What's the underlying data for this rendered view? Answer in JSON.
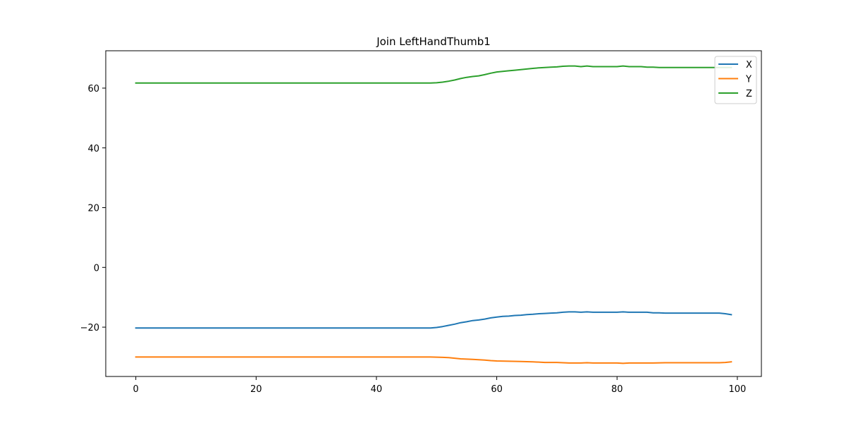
{
  "chart_data": {
    "type": "line",
    "title": "Join LeftHandThumb1",
    "xlabel": "",
    "ylabel": "",
    "xlim": [
      -5.0,
      104.0
    ],
    "ylim": [
      -36.5,
      72.5
    ],
    "xticks": [
      0,
      20,
      40,
      60,
      80,
      100
    ],
    "yticks": [
      -20,
      0,
      20,
      40,
      60
    ],
    "grid": false,
    "legend_position": "top-right",
    "series": [
      {
        "name": "X",
        "color": "#1f77b4",
        "points": [
          [
            0,
            -20.3
          ],
          [
            49,
            -20.3
          ],
          [
            50,
            -20.1
          ],
          [
            51,
            -19.8
          ],
          [
            52,
            -19.4
          ],
          [
            53,
            -19.0
          ],
          [
            54,
            -18.5
          ],
          [
            55,
            -18.2
          ],
          [
            56,
            -17.8
          ],
          [
            57,
            -17.6
          ],
          [
            58,
            -17.3
          ],
          [
            59,
            -16.9
          ],
          [
            60,
            -16.6
          ],
          [
            61,
            -16.4
          ],
          [
            62,
            -16.3
          ],
          [
            63,
            -16.1
          ],
          [
            64,
            -16.0
          ],
          [
            65,
            -15.8
          ],
          [
            66,
            -15.7
          ],
          [
            67,
            -15.5
          ],
          [
            68,
            -15.4
          ],
          [
            69,
            -15.3
          ],
          [
            70,
            -15.2
          ],
          [
            71,
            -15.0
          ],
          [
            72,
            -14.9
          ],
          [
            73,
            -14.9
          ],
          [
            74,
            -15.0
          ],
          [
            75,
            -14.9
          ],
          [
            76,
            -15.0
          ],
          [
            80,
            -15.0
          ],
          [
            81,
            -14.9
          ],
          [
            82,
            -15.0
          ],
          [
            85,
            -15.0
          ],
          [
            86,
            -15.2
          ],
          [
            87,
            -15.2
          ],
          [
            88,
            -15.3
          ],
          [
            97,
            -15.3
          ],
          [
            98,
            -15.5
          ],
          [
            99,
            -15.8
          ]
        ]
      },
      {
        "name": "Y",
        "color": "#ff7f0e",
        "points": [
          [
            0,
            -30.0
          ],
          [
            49,
            -30.0
          ],
          [
            51,
            -30.1
          ],
          [
            52,
            -30.2
          ],
          [
            53,
            -30.4
          ],
          [
            54,
            -30.6
          ],
          [
            55,
            -30.7
          ],
          [
            56,
            -30.8
          ],
          [
            57,
            -30.9
          ],
          [
            58,
            -31.0
          ],
          [
            59,
            -31.2
          ],
          [
            60,
            -31.3
          ],
          [
            62,
            -31.4
          ],
          [
            64,
            -31.5
          ],
          [
            66,
            -31.6
          ],
          [
            68,
            -31.8
          ],
          [
            70,
            -31.8
          ],
          [
            72,
            -32.0
          ],
          [
            74,
            -32.0
          ],
          [
            75,
            -31.9
          ],
          [
            76,
            -32.0
          ],
          [
            80,
            -32.0
          ],
          [
            81,
            -32.1
          ],
          [
            82,
            -32.0
          ],
          [
            86,
            -32.0
          ],
          [
            88,
            -31.9
          ],
          [
            96,
            -31.9
          ],
          [
            97,
            -31.9
          ],
          [
            98,
            -31.8
          ],
          [
            99,
            -31.6
          ]
        ]
      },
      {
        "name": "Z",
        "color": "#2ca02c",
        "points": [
          [
            0,
            61.7
          ],
          [
            49,
            61.7
          ],
          [
            50,
            61.8
          ],
          [
            51,
            62.0
          ],
          [
            52,
            62.3
          ],
          [
            53,
            62.7
          ],
          [
            54,
            63.2
          ],
          [
            55,
            63.6
          ],
          [
            56,
            63.9
          ],
          [
            57,
            64.1
          ],
          [
            58,
            64.5
          ],
          [
            59,
            65.0
          ],
          [
            60,
            65.4
          ],
          [
            61,
            65.6
          ],
          [
            62,
            65.8
          ],
          [
            63,
            66.0
          ],
          [
            64,
            66.2
          ],
          [
            65,
            66.4
          ],
          [
            66,
            66.6
          ],
          [
            67,
            66.8
          ],
          [
            68,
            66.9
          ],
          [
            69,
            67.0
          ],
          [
            70,
            67.1
          ],
          [
            71,
            67.3
          ],
          [
            72,
            67.4
          ],
          [
            73,
            67.4
          ],
          [
            74,
            67.2
          ],
          [
            75,
            67.4
          ],
          [
            76,
            67.2
          ],
          [
            80,
            67.2
          ],
          [
            81,
            67.4
          ],
          [
            82,
            67.2
          ],
          [
            84,
            67.2
          ],
          [
            85,
            67.0
          ],
          [
            86,
            67.0
          ],
          [
            87,
            66.9
          ],
          [
            99,
            66.9
          ]
        ]
      }
    ]
  }
}
